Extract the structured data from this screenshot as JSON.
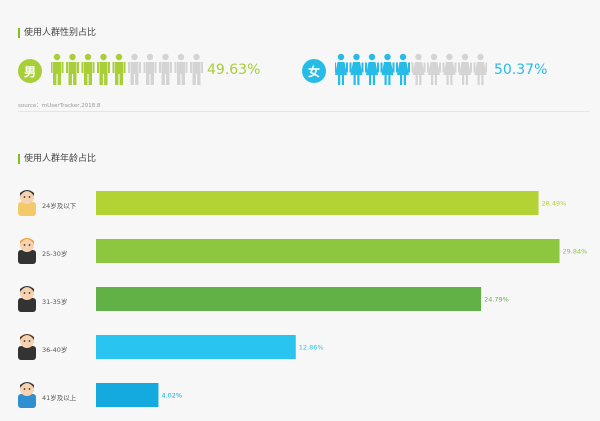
{
  "gender": {
    "title": "使用人群性别占比",
    "male": {
      "symbol": "男",
      "percent": "49.63%",
      "color": "#a8cf38",
      "filled": 5,
      "total": 10
    },
    "female": {
      "symbol": "女",
      "percent": "50.37%",
      "color": "#27bce8",
      "filled": 5,
      "total": 10
    },
    "source": "source：mUserTracker,2018.8"
  },
  "age": {
    "title": "使用人群年龄占比"
  },
  "chart_data": {
    "type": "bar",
    "orientation": "horizontal",
    "categories": [
      "24岁及以下",
      "25-30岁",
      "31-35岁",
      "36-40岁",
      "41岁及以上"
    ],
    "values": [
      28.49,
      29.84,
      24.79,
      12.86,
      4.02
    ],
    "value_labels": [
      "28.49%",
      "29.84%",
      "24.79%",
      "12.86%",
      "4.02%"
    ],
    "colors": [
      "#b3d335",
      "#8dc63f",
      "#62b146",
      "#29c4ef",
      "#14aadf"
    ],
    "avatar_icons": [
      "boy-avatar-icon",
      "orange-hair-man-avatar-icon",
      "suit-man-avatar-icon",
      "beard-man-avatar-icon",
      "blue-shirt-man-avatar-icon"
    ],
    "title": "使用人群年龄占比",
    "xlabel": "",
    "ylabel": "",
    "xlim": [
      0,
      30
    ],
    "grid": false
  }
}
